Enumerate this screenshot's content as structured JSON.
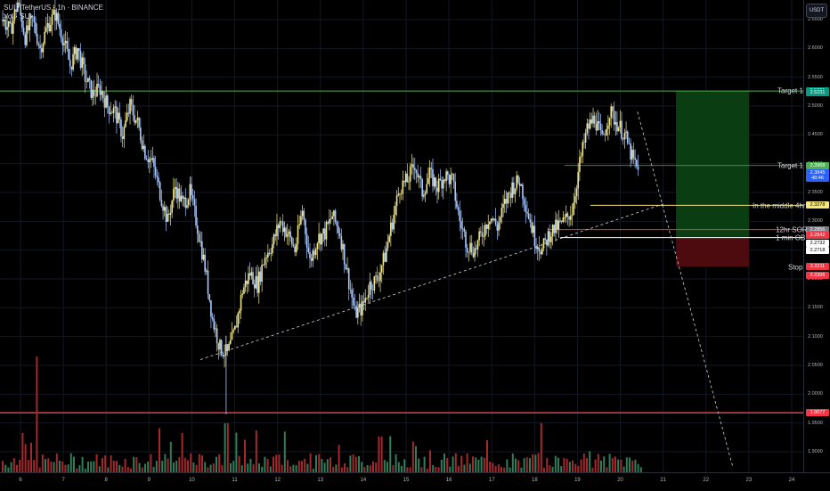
{
  "header": {
    "symbol": "SUI / TetherUS · 1h · BINANCE",
    "sub": "Vol · SUI"
  },
  "currency_button": "USDT",
  "price_axis": {
    "ticks": [
      "2.6500",
      "2.6000",
      "2.5500",
      "2.5000",
      "2.4500",
      "2.4000",
      "2.3500",
      "2.3000",
      "2.2500",
      "2.2000",
      "2.1500",
      "2.1000",
      "2.0500",
      "2.0000",
      "1.9500",
      "1.9000"
    ],
    "tags": [
      {
        "text": "2.5261",
        "color": "#089981",
        "text_color": "#ffffff",
        "value": 2.5261
      },
      {
        "text": "2.5231",
        "color": "#089981",
        "text_color": "#ffffff",
        "value": 2.5231
      },
      {
        "text": "2.3968",
        "color": "#4caf50",
        "text_color": "#ffffff",
        "value": 2.3968
      },
      {
        "text": "2.3845",
        "color": "#2962ff",
        "text_color": "#ffffff",
        "value": 2.3845
      },
      {
        "text": "48:46",
        "color": "#2962ff",
        "text_color": "#ffffff",
        "value": 2.374
      },
      {
        "text": "2.3278",
        "color": "#f7e77a",
        "text_color": "#000000",
        "value": 2.3278
      },
      {
        "text": "2.2856",
        "color": "#787b86",
        "text_color": "#ffffff",
        "value": 2.2856
      },
      {
        "text": "2.2842",
        "color": "#f23645",
        "text_color": "#ffffff",
        "value": 2.2755
      },
      {
        "text": "2.2732",
        "color": "#ffffff",
        "text_color": "#000000",
        "value": 2.2625
      },
      {
        "text": "2.2718",
        "color": "#ffffff",
        "text_color": "#000000",
        "value": 2.249
      },
      {
        "text": "2.2211",
        "color": "#f23645",
        "text_color": "#ffffff",
        "value": 2.2211
      },
      {
        "text": "2.2206",
        "color": "#f23645",
        "text_color": "#ffffff",
        "value": 2.2063
      },
      {
        "text": "1.9677",
        "color": "#f23645",
        "text_color": "#ffffff",
        "value": 1.9677
      }
    ]
  },
  "time_axis": {
    "ticks": [
      "6",
      "7",
      "8",
      "9",
      "10",
      "11",
      "12",
      "13",
      "14",
      "15",
      "16",
      "17",
      "18",
      "19",
      "20",
      "21",
      "22",
      "23",
      "24"
    ]
  },
  "annotations": {
    "target1_top": "Target 1",
    "target1_mid": "Target 1",
    "middle_4hr": "In the middle 4hr",
    "sor_12hr": "12hr SOR",
    "min_ob_1": "1 min OB",
    "stop": "Stop"
  },
  "colors": {
    "bull": "#f0e68c",
    "bear": "#a9c8ff",
    "green_line": "#4caf50",
    "red_line": "#f23645",
    "profit_zone": "#0b3d12",
    "loss_zone": "#4d0a0f",
    "vol_bull": "#2e7d5b",
    "vol_bear": "#a4282c"
  },
  "chart_data": {
    "type": "candlestick",
    "symbol": "SUI/USDT",
    "interval": "1h",
    "exchange": "BINANCE",
    "x_ticks": [
      "6",
      "7",
      "8",
      "9",
      "10",
      "11",
      "12",
      "13",
      "14",
      "15",
      "16",
      "17",
      "18",
      "19",
      "20",
      "21",
      "22",
      "23",
      "24"
    ],
    "y_range": [
      1.87,
      2.67
    ],
    "trendline_support": [
      [
        2.06,
        "10.2"
      ],
      [
        2.33,
        "21.0"
      ]
    ],
    "projected_path": [
      [
        2.49,
        "20.4"
      ],
      [
        1.87,
        "22.6"
      ]
    ],
    "levels": {
      "target1_high": 2.5261,
      "target1_low": 2.3968,
      "middle_4hr": 2.3278,
      "sor_12hr": 2.2856,
      "ob_1min": 2.2718,
      "stop": 2.2211,
      "support_red": 1.9677
    },
    "close_path": [
      2.65,
      2.63,
      2.68,
      2.62,
      2.65,
      2.6,
      2.64,
      2.66,
      2.62,
      2.57,
      2.6,
      2.55,
      2.52,
      2.53,
      2.5,
      2.49,
      2.45,
      2.5,
      2.47,
      2.42,
      2.4,
      2.35,
      2.3,
      2.36,
      2.33,
      2.35,
      2.29,
      2.22,
      2.13,
      2.08,
      2.07,
      2.11,
      2.18,
      2.21,
      2.19,
      2.24,
      2.26,
      2.3,
      2.28,
      2.25,
      2.32,
      2.23,
      2.27,
      2.28,
      2.31,
      2.28,
      2.21,
      2.14,
      2.15,
      2.19,
      2.2,
      2.24,
      2.3,
      2.36,
      2.37,
      2.4,
      2.35,
      2.38,
      2.36,
      2.38,
      2.37,
      2.3,
      2.26,
      2.25,
      2.28,
      2.31,
      2.29,
      2.33,
      2.36,
      2.37,
      2.32,
      2.27,
      2.25,
      2.28,
      2.29,
      2.3,
      2.32,
      2.4,
      2.46,
      2.48,
      2.44,
      2.49,
      2.47,
      2.45,
      2.41,
      2.38
    ]
  }
}
